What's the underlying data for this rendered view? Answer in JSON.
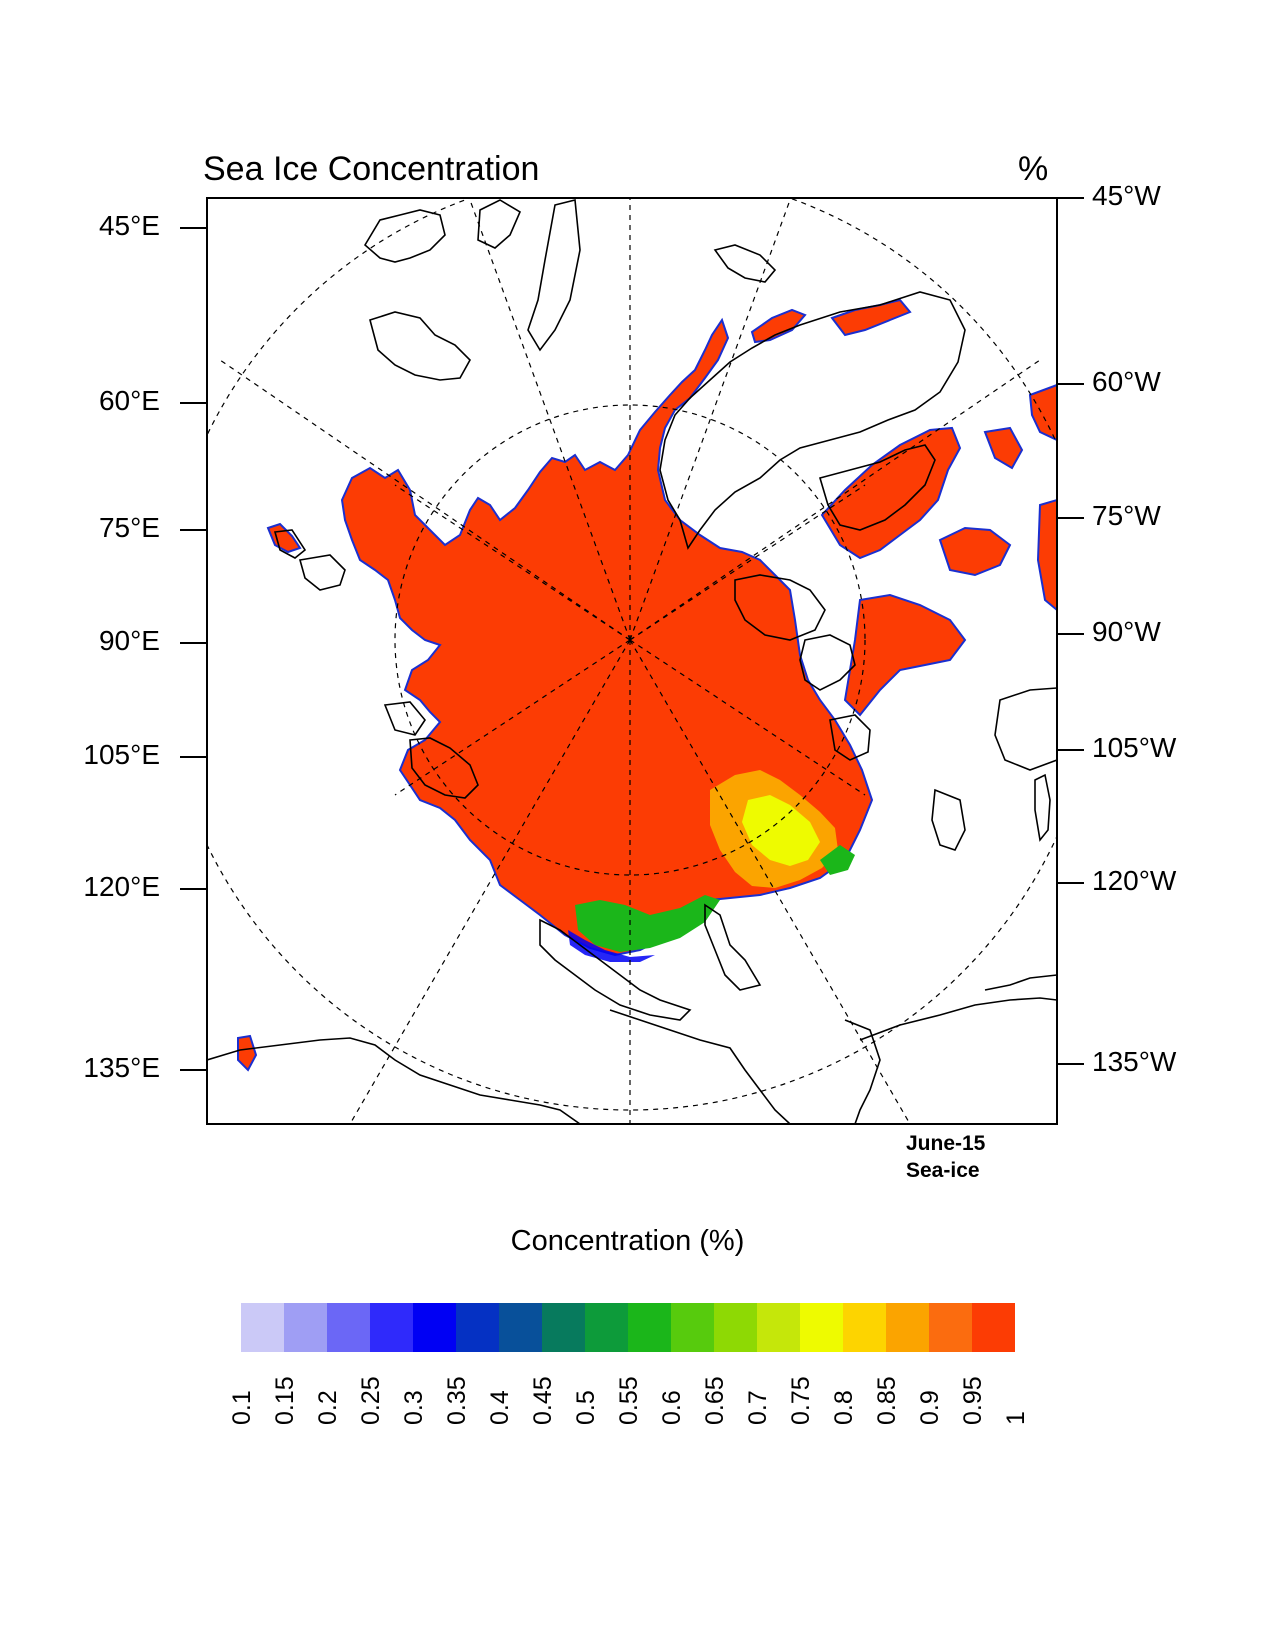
{
  "title": "Sea Ice Concentration",
  "unit": "%",
  "left_labels": [
    "45°E",
    "60°E",
    "75°E",
    "90°E",
    "105°E",
    "120°E",
    "135°E"
  ],
  "right_labels": [
    "45°W",
    "60°W",
    "75°W",
    "90°W",
    "105°W",
    "120°W",
    "135°W"
  ],
  "stamp": {
    "line1": "June-15",
    "line2": "Sea-ice"
  },
  "legend": {
    "title": "Concentration (%)",
    "ticks": [
      "0.1",
      "0.15",
      "0.2",
      "0.25",
      "0.3",
      "0.35",
      "0.4",
      "0.45",
      "0.5",
      "0.55",
      "0.6",
      "0.65",
      "0.7",
      "0.75",
      "0.8",
      "0.85",
      "0.9",
      "0.95",
      "1"
    ],
    "colors": [
      "#cbc9f7",
      "#9f9ef4",
      "#6b67f6",
      "#2f2afb",
      "#0000f4",
      "#0531c3",
      "#08509a",
      "#077a5d",
      "#0d9b3a",
      "#1bb61a",
      "#57cb0d",
      "#8ed904",
      "#c5e70a",
      "#eefb00",
      "#fdd400",
      "#fba400",
      "#fb6c0f",
      "#fc3c04"
    ]
  },
  "map_colors": {
    "ice_full": "#fc3c04",
    "ice_high": "#fba400",
    "ice_mid": "#eefb00",
    "ice_edge": "#1bb61a",
    "ice_low": "#0000f4"
  }
}
